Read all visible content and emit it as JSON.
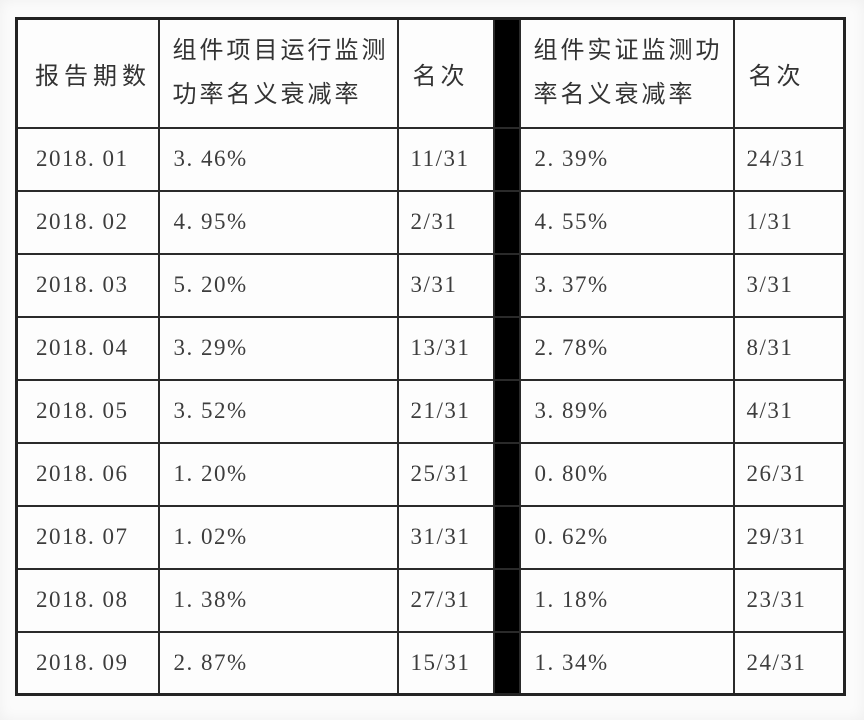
{
  "chart_data": {
    "type": "table",
    "title": "",
    "columns": [
      "报告期数",
      "组件项目运行监测功率名义衰减率",
      "名次",
      "组件实证监测功率名义衰减率",
      "名次"
    ],
    "rows": [
      [
        "2018. 01",
        "3. 46%",
        "11/31",
        "2. 39%",
        "24/31"
      ],
      [
        "2018. 02",
        "4. 95%",
        "2/31",
        "4. 55%",
        "1/31"
      ],
      [
        "2018. 03",
        "5. 20%",
        "3/31",
        "3. 37%",
        "3/31"
      ],
      [
        "2018. 04",
        "3. 29%",
        "13/31",
        "2. 78%",
        "8/31"
      ],
      [
        "2018. 05",
        "3. 52%",
        "21/31",
        "3. 89%",
        "4/31"
      ],
      [
        "2018. 06",
        "1. 20%",
        "25/31",
        "0. 80%",
        "26/31"
      ],
      [
        "2018. 07",
        "1. 02%",
        "31/31",
        "0. 62%",
        "29/31"
      ],
      [
        "2018. 08",
        "1. 38%",
        "27/31",
        "1. 18%",
        "23/31"
      ],
      [
        "2018. 09",
        "2. 87%",
        "15/31",
        "1. 34%",
        "24/31"
      ]
    ]
  },
  "header": {
    "period": "报告期数",
    "operation_rate_line1": "组件项目运行监测",
    "operation_rate_line2": "功率名义衰减率",
    "rank_left": "名次",
    "empirical_rate_line1": "组件实证监测功",
    "empirical_rate_line2": "率名义衰减率",
    "rank_right": "名次"
  },
  "colors": {
    "border": "#2a2a2a",
    "divider": "#000000",
    "text": "#3d3d3d",
    "page_background": "#fbfbfb",
    "cell_background": "#fdfdfd"
  }
}
